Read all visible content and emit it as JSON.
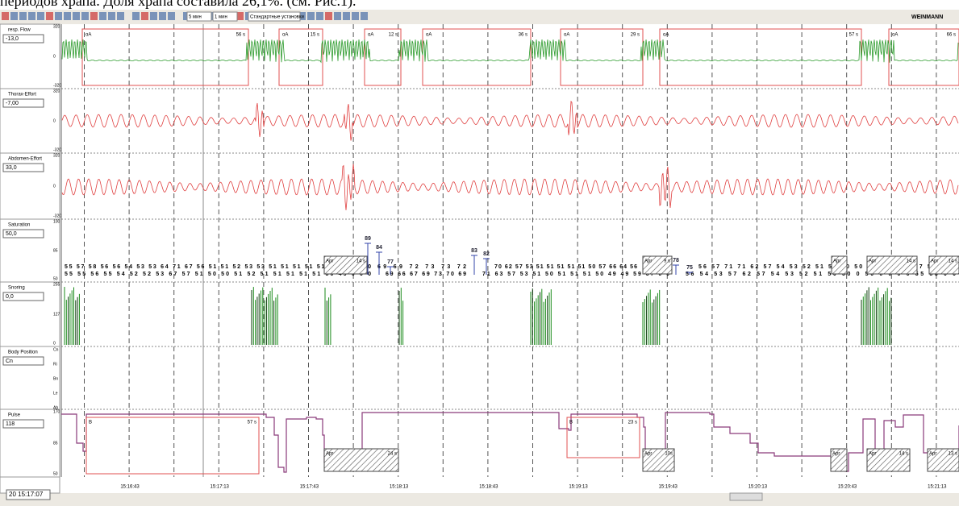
{
  "caption": "периодов храпа. Доля храпа составила 26,1%. (см. Рис.1).",
  "toolbar": {
    "dropdowns": [
      "5 мин",
      "1 мин",
      "Стандартные установки"
    ],
    "brand": "WEINMANN"
  },
  "channels": [
    {
      "label": "resp. Flow",
      "value": "-13,0",
      "scale": [
        "320",
        "0",
        "-320"
      ]
    },
    {
      "label": "Thorax-Effort",
      "value": "-7,00",
      "scale": [
        "320",
        "0",
        "-320"
      ]
    },
    {
      "label": "Abdomen-Effort",
      "value": "33,0",
      "scale": [
        "320",
        "0",
        "-320"
      ]
    },
    {
      "label": "Saturation",
      "value": "50,0",
      "scale": [
        "100",
        "85",
        "50"
      ]
    },
    {
      "label": "Snoring",
      "value": "0,0",
      "scale": [
        "255",
        "127",
        "0"
      ]
    },
    {
      "label": "Body Position",
      "value": "Cn",
      "scale": [
        "Cn",
        "Ri",
        "Bn",
        "Le",
        "Ab"
      ]
    },
    {
      "label": "Pulse",
      "value": "118",
      "scale": [
        "170",
        "85",
        "50"
      ]
    }
  ],
  "flow_events": [
    {
      "label": "oA",
      "duration": "56 s"
    },
    {
      "label": "oA",
      "duration": "15 s"
    },
    {
      "label": "oA",
      "duration": "12 s"
    },
    {
      "label": "oA",
      "duration": "36 s"
    },
    {
      "label": "oA",
      "duration": "29 s"
    },
    {
      "label": "oA",
      "duration": "57 s"
    },
    {
      "label": "oA",
      "duration": "66 s"
    }
  ],
  "desat_events": [
    {
      "label": "Apr",
      "duration": "14 s"
    },
    {
      "label": "Apr",
      "duration": "9 s"
    },
    {
      "label": "Apr",
      "duration": ""
    },
    {
      "label": "Apr",
      "duration": "14 s"
    },
    {
      "label": "Apr",
      "duration": "14 s"
    }
  ],
  "sat_peaks": [
    "89",
    "84",
    "77",
    "83",
    "82",
    "78",
    "75"
  ],
  "sat_row1": [
    "55 57 58 56 56 54 53 53 64 71 67 56 51 51 52 53 53 51 51 51 51 51 50 49 0 0 0",
    "69 69 72 73 73 72",
    "70 62 57 53 51 51 51 51 51 50 57 66 64 56",
    "56 57 71 71 62 57 54 53 52 51 50 50 50 52 53 55 0 57 55 51 0"
  ],
  "sat_row2": [
    "55 55 56 55 54 52 52 53 67 57 51 50 50 51 52 51 51 51 51 51 50 49 0 0 0",
    "69 66 67 69 73 70 69",
    "71 63 57 53 51 50 51 51 51 50 49 49 59 57 0 0",
    "56 54 53 57 62 57 54 53 52 51 50 50 0 50 0 0 0 0 55 53 0 0"
  ],
  "pulse_events": [
    {
      "label": "B",
      "duration": "57 s"
    },
    {
      "label": "B",
      "duration": "23 s"
    }
  ],
  "pulse_desat": [
    {
      "label": "Apr",
      "duration": "24 s"
    },
    {
      "label": "Apr",
      "duration": "10s"
    },
    {
      "label": "Apr",
      "duration": ""
    },
    {
      "label": "Apr",
      "duration": "14 s"
    },
    {
      "label": "Apr",
      "duration": "13 s"
    }
  ],
  "time_labels": [
    "15:16:43",
    "15:17:13",
    "15:17:43",
    "15:18:13",
    "15:18:43",
    "15:19:13",
    "15:19:43",
    "15:20:13",
    "15:20:43",
    "15:21:13"
  ],
  "cursor_time": "20  15:17:07"
}
